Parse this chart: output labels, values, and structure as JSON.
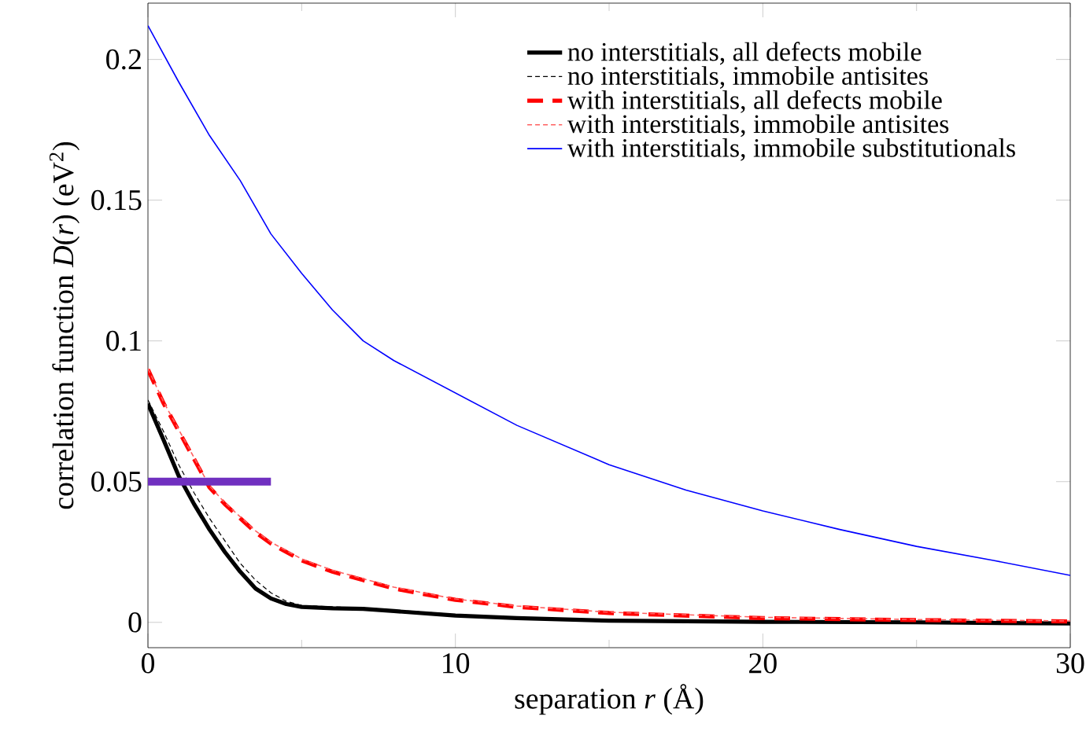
{
  "chart_data": {
    "type": "line",
    "xlabel": "separation *r* (Å)",
    "ylabel": "correlation function *D*(*r*) (eV$^{2}$)",
    "xlim": [
      0,
      30
    ],
    "ylim": [
      -0.009,
      0.22
    ],
    "xticks": [
      0,
      {
        "value": 5,
        "label": null
      },
      10,
      {
        "value": 15,
        "label": null
      },
      20,
      {
        "value": 25,
        "label": null
      },
      30
    ],
    "yticks": [
      0,
      0.05,
      0.1,
      0.15,
      0.2
    ],
    "legend": "top right",
    "series": [
      {
        "name": "no interstitials, all defects mobile",
        "color": "#000000",
        "line_style": "solid",
        "x": [
          0,
          0.5,
          1,
          1.5,
          2,
          2.5,
          3,
          3.5,
          4,
          4.5,
          5,
          6,
          7,
          8,
          10,
          12,
          15,
          20,
          25,
          30
        ],
        "values": [
          0.0777,
          0.065,
          0.052,
          0.042,
          0.033,
          0.025,
          0.018,
          0.012,
          0.0085,
          0.0065,
          0.0055,
          0.005,
          0.0048,
          0.004,
          0.0024,
          0.0015,
          0.0006,
          0.0002,
          0,
          -0.0004
        ]
      },
      {
        "name": "no interstitials, immobile antisites",
        "color": "#000000",
        "line_style": "dashed",
        "x": [
          0,
          0.5,
          1,
          1.5,
          2,
          2.5,
          3,
          3.5,
          4,
          4.5,
          5,
          6,
          7,
          8,
          10,
          12,
          15,
          20,
          25,
          30
        ],
        "values": [
          0.079,
          0.068,
          0.056,
          0.046,
          0.037,
          0.029,
          0.021,
          0.015,
          0.0105,
          0.0075,
          0.006,
          0.0055,
          0.0052,
          0.0044,
          0.0028,
          0.0018,
          0.0009,
          0.0003,
          0.0001,
          -0.0003
        ]
      },
      {
        "name": "with interstitials, all defects mobile",
        "color": "#ff0000",
        "line_style": "dashed",
        "x": [
          0,
          0.5,
          1,
          1.5,
          2,
          2.5,
          3,
          3.5,
          4,
          5,
          6,
          7,
          8,
          10,
          12,
          15,
          20,
          25,
          30
        ],
        "values": [
          0.0898,
          0.078,
          0.068,
          0.058,
          0.048,
          0.042,
          0.037,
          0.032,
          0.028,
          0.022,
          0.018,
          0.015,
          0.012,
          0.008,
          0.0055,
          0.0033,
          0.0015,
          0.0008,
          0.0003
        ]
      },
      {
        "name": "with interstitials, immobile antisites",
        "color": "#ff6060",
        "line_style": "dashed",
        "x": [
          0,
          0.5,
          1,
          1.5,
          2,
          2.5,
          3,
          3.5,
          4,
          5,
          6,
          7,
          8,
          10,
          12,
          15,
          20,
          25,
          30
        ],
        "values": [
          0.0902,
          0.0785,
          0.0685,
          0.0585,
          0.0485,
          0.0425,
          0.0375,
          0.0325,
          0.0285,
          0.0225,
          0.0185,
          0.0155,
          0.0125,
          0.0083,
          0.0058,
          0.0036,
          0.0018,
          0.001,
          0.0005
        ]
      },
      {
        "name": "with interstitials, immobile substitutionals",
        "color": "#0000ff",
        "line_style": "solid",
        "x": [
          0,
          1,
          2,
          3,
          4,
          5,
          6,
          7,
          8,
          10,
          12,
          15,
          17.5,
          20,
          22.5,
          25,
          27.5,
          30
        ],
        "values": [
          0.212,
          0.192,
          0.173,
          0.157,
          0.138,
          0.124,
          0.111,
          0.1,
          0.093,
          0.0815,
          0.07,
          0.056,
          0.047,
          0.0396,
          0.033,
          0.027,
          0.022,
          0.0167
        ]
      },
      {
        "color": "#7030c0",
        "line_style": "solid",
        "x": [
          0,
          4
        ],
        "values": [
          0.05,
          0.05
        ]
      }
    ]
  }
}
